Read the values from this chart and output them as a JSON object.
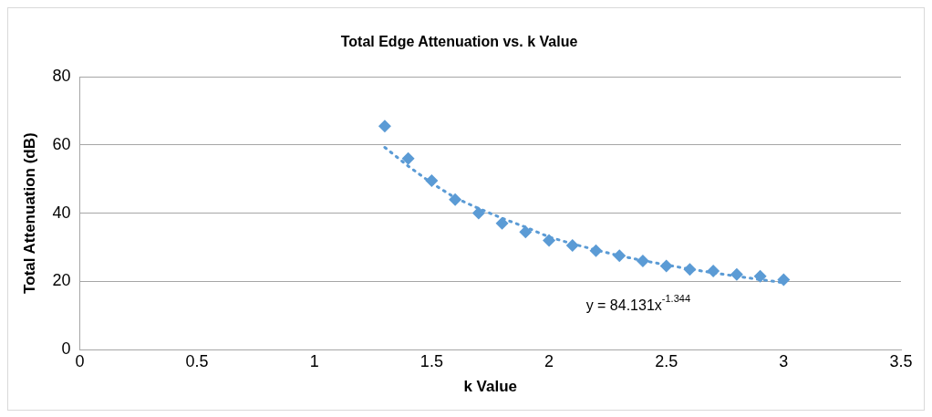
{
  "chart_data": {
    "type": "scatter",
    "title": "Total Edge Attenuation vs. k Value",
    "xlabel": "k Value",
    "ylabel": "Total Attenuation (dB)",
    "xlim": [
      0,
      3.5
    ],
    "xticks": [
      0,
      0.5,
      1,
      1.5,
      2,
      2.5,
      3,
      3.5
    ],
    "ylim": [
      0,
      80
    ],
    "yticks": [
      0,
      20,
      40,
      60,
      80
    ],
    "grid": "y",
    "marker": "diamond",
    "series": [
      {
        "color": "#5b9bd5",
        "x": [
          1.3,
          1.4,
          1.5,
          1.6,
          1.7,
          1.8,
          1.9,
          2.0,
          2.1,
          2.2,
          2.3,
          2.4,
          2.5,
          2.6,
          2.7,
          2.8,
          2.9,
          3.0
        ],
        "values": [
          65.5,
          56,
          49.5,
          44,
          40,
          37,
          34.5,
          32,
          30.5,
          29,
          27.5,
          26,
          24.5,
          23.5,
          23,
          22,
          21.5,
          20.5
        ]
      },
      {
        "type": "line",
        "color": "#5b9bd5",
        "line_style": "dotted",
        "marker": "none",
        "x": [
          1.3,
          1.4,
          1.5,
          1.6,
          1.7,
          1.8,
          1.9,
          2.0,
          2.1,
          2.2,
          2.3,
          2.4,
          2.5,
          2.6,
          2.7,
          2.8,
          2.9,
          3.0
        ],
        "values": [
          59.3,
          53.8,
          48.8,
          44.5,
          41.4,
          38.5,
          35.9,
          33.0,
          31.0,
          29.2,
          27.5,
          26.1,
          24.8,
          23.6,
          22.5,
          21.5,
          20.5,
          19.6
        ]
      }
    ],
    "annotations": [
      "y = 84.131x$^{-1.344}$"
    ]
  }
}
